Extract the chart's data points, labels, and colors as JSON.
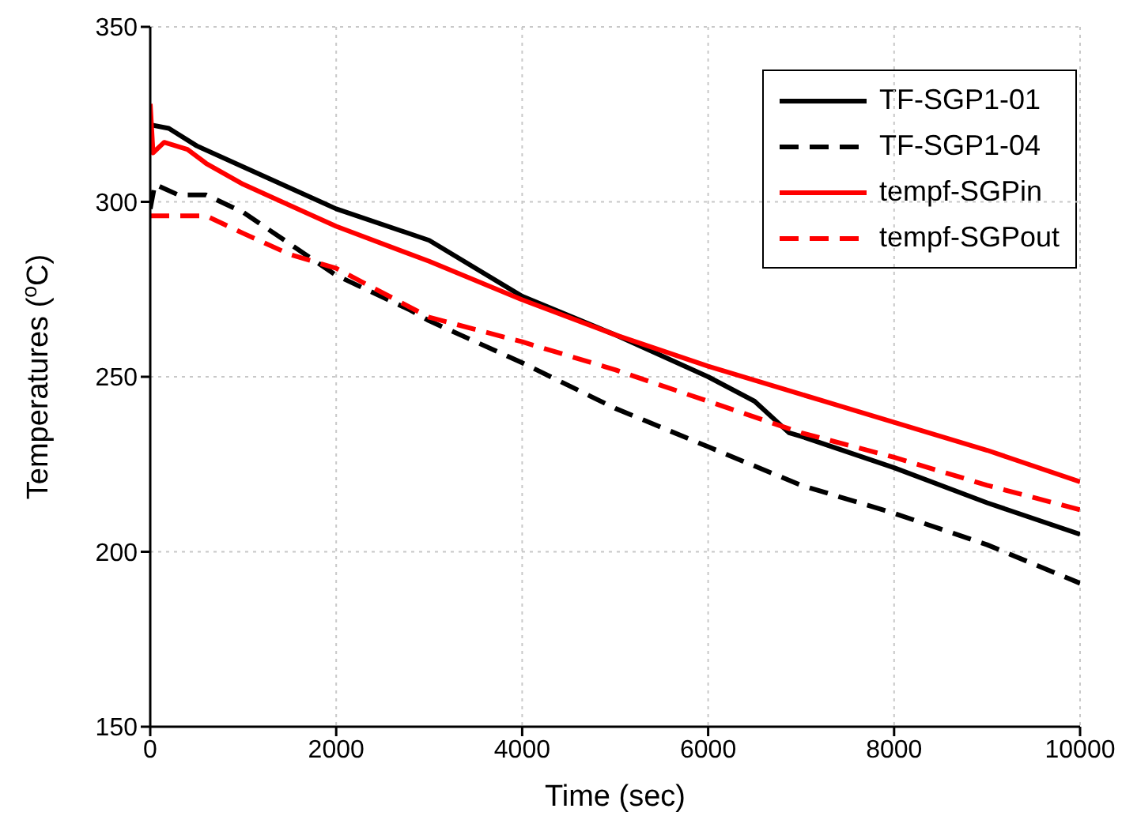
{
  "chart_data": {
    "type": "line",
    "xlabel": "Time (sec)",
    "ylabel": "Temperatures ($^{o}$C)",
    "xlim": [
      0,
      10000
    ],
    "xticks": [
      0,
      2000,
      4000,
      6000,
      8000,
      10000
    ],
    "ylim": [
      150,
      350
    ],
    "yticks": [
      150,
      200,
      250,
      300,
      350
    ],
    "grid": true,
    "legend": "top right",
    "marker": "none",
    "series": [
      {
        "name": "TF-SGP1-01",
        "color": "#000000",
        "line_style": "solid",
        "x": [
          0,
          200,
          500,
          1000,
          2000,
          3000,
          4000,
          5000,
          6000,
          6500,
          6870,
          7000,
          8000,
          9000,
          10000
        ],
        "values": [
          322,
          321,
          316,
          310,
          298,
          289,
          273,
          262,
          250,
          243,
          234,
          233,
          224,
          214,
          205
        ]
      },
      {
        "name": "TF-SGP1-04",
        "color": "#000000",
        "line_style": "dashed",
        "x": [
          0,
          50,
          300,
          600,
          1000,
          2000,
          2800,
          3000,
          4000,
          5000,
          6000,
          7000,
          8000,
          9000,
          10000
        ],
        "values": [
          298,
          305,
          302,
          302,
          297,
          279,
          269,
          266,
          254,
          241,
          230,
          219,
          211,
          202,
          191
        ]
      },
      {
        "name": "tempf-SGPin",
        "color": "#ff0000",
        "line_style": "solid",
        "x": [
          0,
          30,
          150,
          400,
          600,
          1000,
          2000,
          3000,
          4000,
          5000,
          6000,
          7000,
          8000,
          9000,
          10000
        ],
        "values": [
          328,
          314,
          317,
          315,
          311,
          305,
          293,
          283,
          272,
          262,
          253,
          245,
          237,
          229,
          220
        ]
      },
      {
        "name": "tempf-SGPout",
        "color": "#ff0000",
        "line_style": "dashed",
        "x": [
          0,
          600,
          1000,
          1500,
          2000,
          3000,
          4000,
          5000,
          6000,
          7000,
          8000,
          9000,
          10000
        ],
        "values": [
          296,
          296,
          291,
          285,
          281,
          267,
          260,
          252,
          243,
          234,
          227,
          219,
          212
        ]
      }
    ]
  }
}
